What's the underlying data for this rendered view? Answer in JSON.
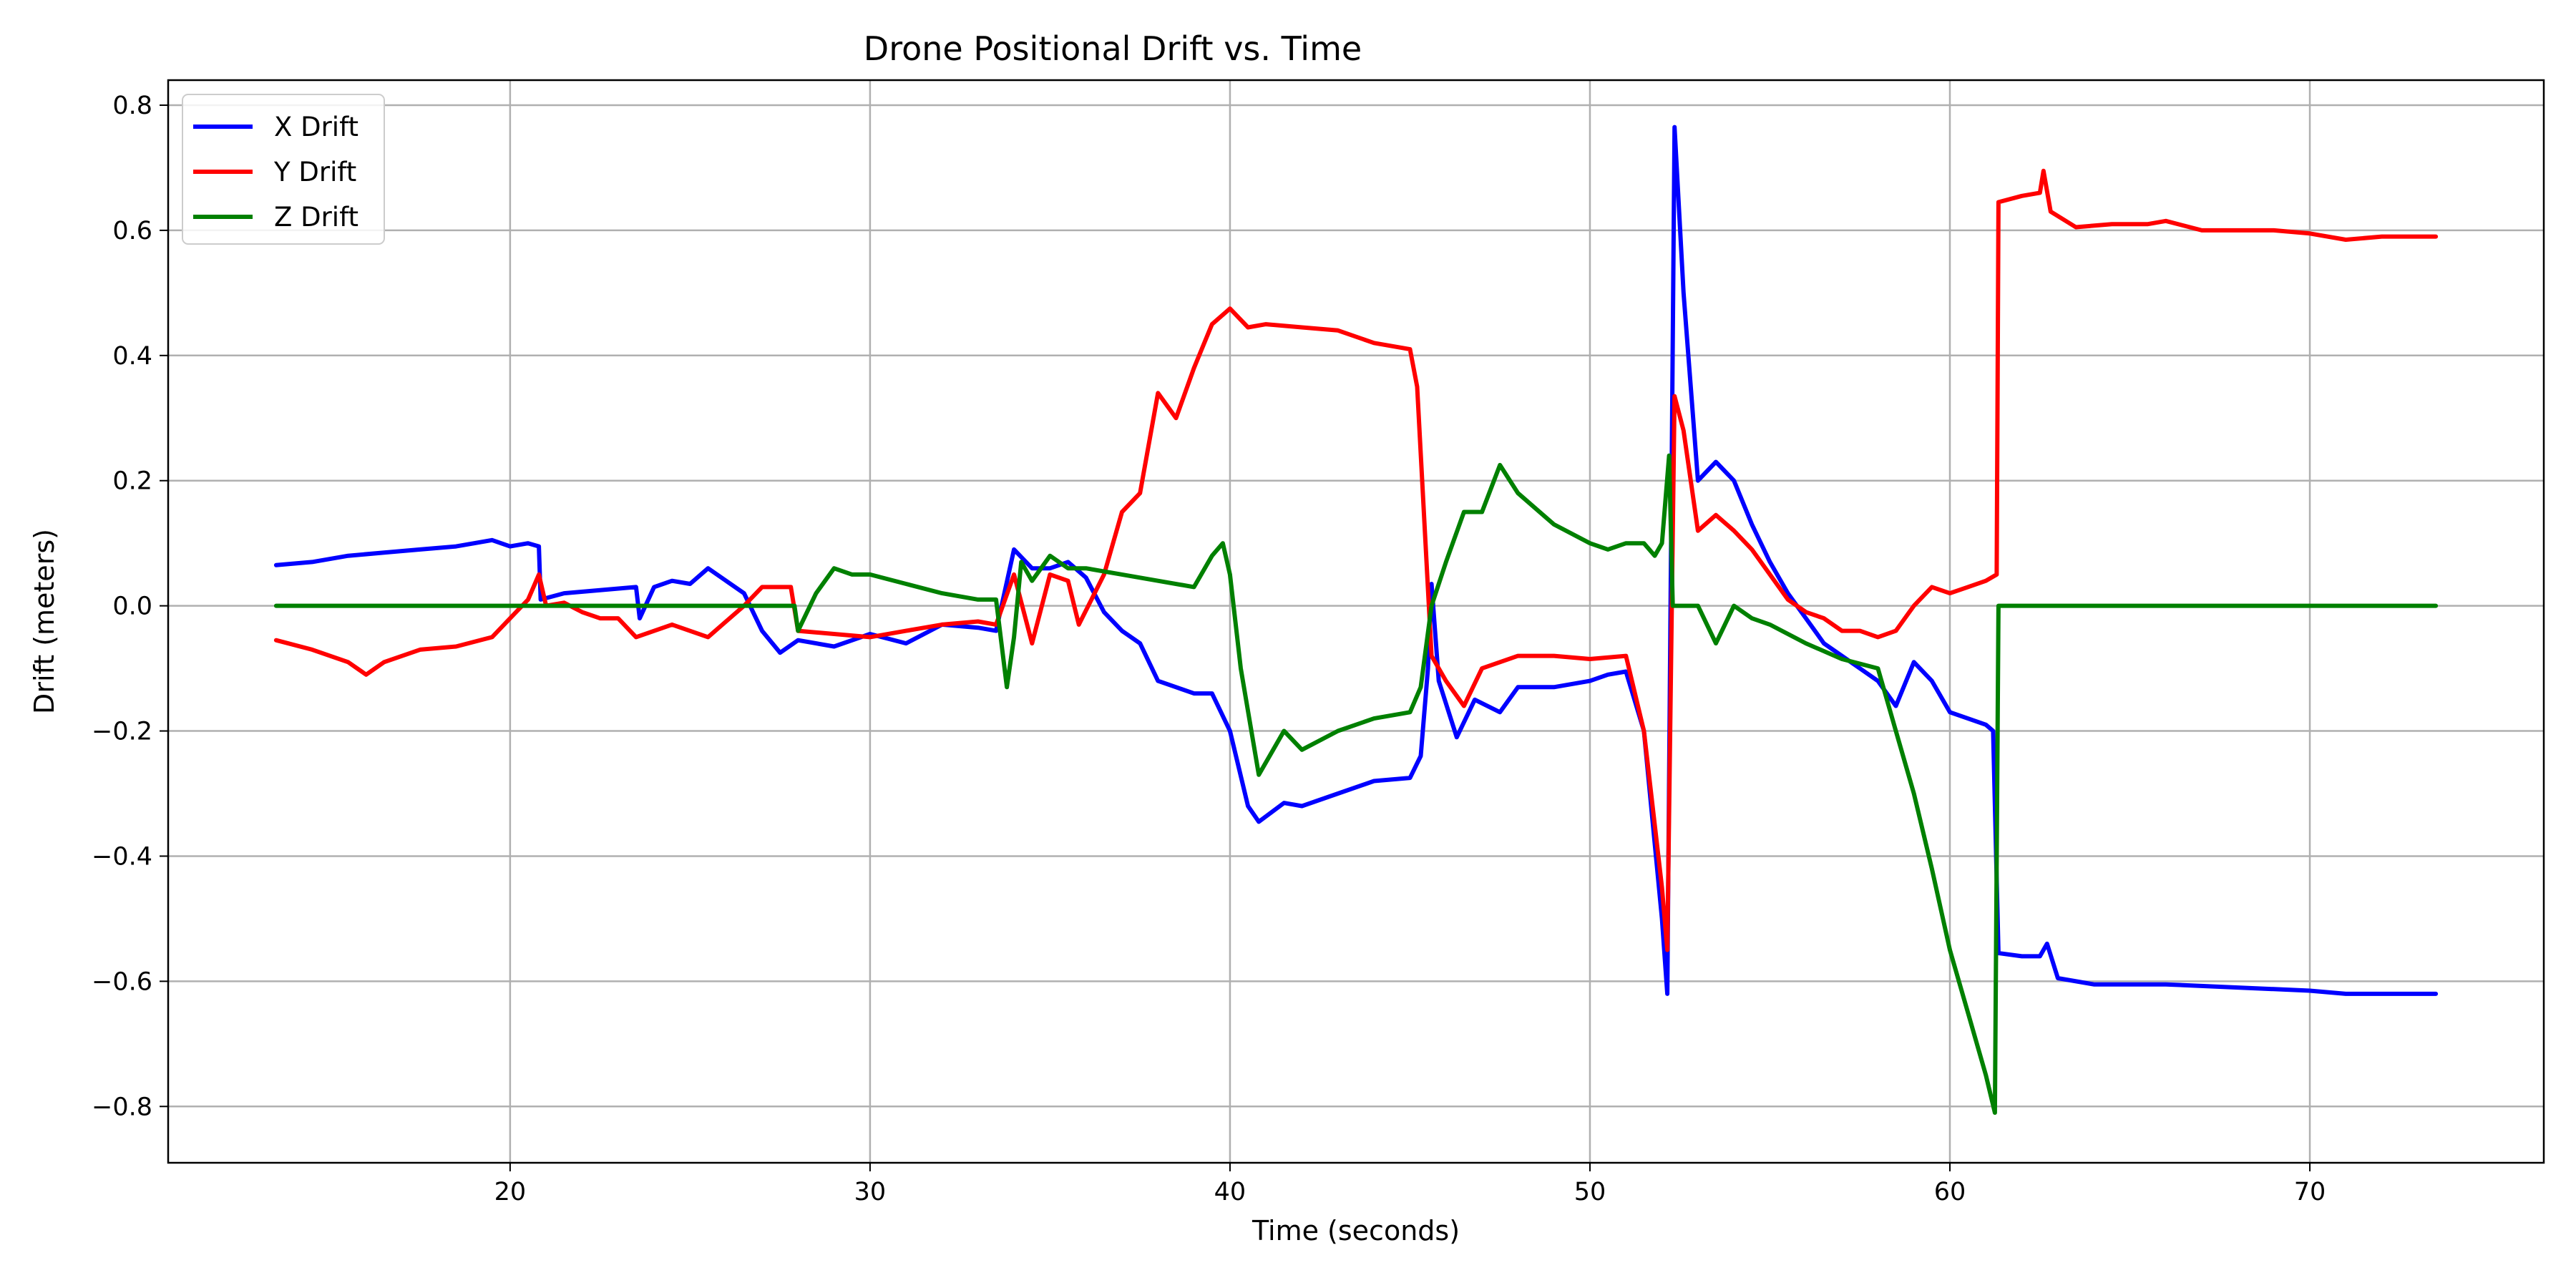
{
  "chart_data": {
    "type": "line",
    "title": "Drone Positional Drift vs. Time",
    "xlabel": "Time (seconds)",
    "ylabel": "Drift (meters)",
    "xlim": [
      10.5,
      76.5
    ],
    "ylim": [
      -0.89,
      0.84
    ],
    "xticks": [
      20,
      30,
      40,
      50,
      60,
      70
    ],
    "yticks": [
      -0.8,
      -0.6,
      -0.4,
      -0.2,
      0.0,
      0.2,
      0.4,
      0.6,
      0.8
    ],
    "ytick_labels": [
      "−0.8",
      "−0.6",
      "−0.4",
      "−0.2",
      "0.0",
      "0.2",
      "0.4",
      "0.6",
      "0.8"
    ],
    "grid": true,
    "legend_position": "upper-left",
    "series": [
      {
        "name": "X Drift",
        "color": "#0000ff",
        "points": [
          [
            13.5,
            0.065
          ],
          [
            14.5,
            0.07
          ],
          [
            15.5,
            0.08
          ],
          [
            16.5,
            0.085
          ],
          [
            17.5,
            0.09
          ],
          [
            18.5,
            0.095
          ],
          [
            19.5,
            0.105
          ],
          [
            20.0,
            0.095
          ],
          [
            20.5,
            0.1
          ],
          [
            20.8,
            0.095
          ],
          [
            20.85,
            0.01
          ],
          [
            21.5,
            0.02
          ],
          [
            22.5,
            0.025
          ],
          [
            23.5,
            0.03
          ],
          [
            23.6,
            -0.02
          ],
          [
            24.0,
            0.03
          ],
          [
            24.5,
            0.04
          ],
          [
            25.0,
            0.035
          ],
          [
            25.5,
            0.06
          ],
          [
            26.0,
            0.04
          ],
          [
            26.5,
            0.02
          ],
          [
            27.0,
            -0.04
          ],
          [
            27.5,
            -0.075
          ],
          [
            28.0,
            -0.055
          ],
          [
            29.0,
            -0.065
          ],
          [
            30.0,
            -0.045
          ],
          [
            31.0,
            -0.06
          ],
          [
            32.0,
            -0.03
          ],
          [
            33.0,
            -0.035
          ],
          [
            33.5,
            -0.04
          ],
          [
            34.0,
            0.09
          ],
          [
            34.5,
            0.06
          ],
          [
            35.0,
            0.06
          ],
          [
            35.5,
            0.07
          ],
          [
            36.0,
            0.045
          ],
          [
            36.5,
            -0.01
          ],
          [
            37.0,
            -0.04
          ],
          [
            37.5,
            -0.06
          ],
          [
            38.0,
            -0.12
          ],
          [
            38.5,
            -0.13
          ],
          [
            39.0,
            -0.14
          ],
          [
            39.5,
            -0.14
          ],
          [
            40.0,
            -0.2
          ],
          [
            40.5,
            -0.32
          ],
          [
            40.8,
            -0.345
          ],
          [
            41.5,
            -0.315
          ],
          [
            42.0,
            -0.32
          ],
          [
            43.0,
            -0.3
          ],
          [
            44.0,
            -0.28
          ],
          [
            45.0,
            -0.275
          ],
          [
            45.3,
            -0.24
          ],
          [
            45.5,
            -0.1
          ],
          [
            45.6,
            0.035
          ],
          [
            45.8,
            -0.12
          ],
          [
            46.3,
            -0.21
          ],
          [
            46.8,
            -0.15
          ],
          [
            47.5,
            -0.17
          ],
          [
            48.0,
            -0.13
          ],
          [
            49.0,
            -0.13
          ],
          [
            50.0,
            -0.12
          ],
          [
            50.5,
            -0.11
          ],
          [
            51.0,
            -0.105
          ],
          [
            51.5,
            -0.2
          ],
          [
            52.0,
            -0.5
          ],
          [
            52.15,
            -0.62
          ],
          [
            52.35,
            0.765
          ],
          [
            52.6,
            0.5
          ],
          [
            53.0,
            0.2
          ],
          [
            53.5,
            0.23
          ],
          [
            54.0,
            0.2
          ],
          [
            54.5,
            0.13
          ],
          [
            55.0,
            0.07
          ],
          [
            55.5,
            0.02
          ],
          [
            56.0,
            -0.02
          ],
          [
            56.5,
            -0.06
          ],
          [
            57.0,
            -0.08
          ],
          [
            57.5,
            -0.1
          ],
          [
            58.0,
            -0.12
          ],
          [
            58.5,
            -0.16
          ],
          [
            59.0,
            -0.09
          ],
          [
            59.5,
            -0.12
          ],
          [
            60.0,
            -0.17
          ],
          [
            60.5,
            -0.18
          ],
          [
            61.0,
            -0.19
          ],
          [
            61.2,
            -0.2
          ],
          [
            61.35,
            -0.555
          ],
          [
            62.0,
            -0.56
          ],
          [
            62.5,
            -0.56
          ],
          [
            62.7,
            -0.54
          ],
          [
            63.0,
            -0.595
          ],
          [
            64.0,
            -0.605
          ],
          [
            66.0,
            -0.605
          ],
          [
            68.0,
            -0.61
          ],
          [
            70.0,
            -0.615
          ],
          [
            71.0,
            -0.62
          ],
          [
            72.0,
            -0.62
          ],
          [
            73.5,
            -0.62
          ]
        ]
      },
      {
        "name": "Y Drift",
        "color": "#ff0000",
        "points": [
          [
            13.5,
            -0.055
          ],
          [
            14.5,
            -0.07
          ],
          [
            15.5,
            -0.09
          ],
          [
            16.0,
            -0.11
          ],
          [
            16.5,
            -0.09
          ],
          [
            17.5,
            -0.07
          ],
          [
            18.5,
            -0.065
          ],
          [
            19.5,
            -0.05
          ],
          [
            20.0,
            -0.02
          ],
          [
            20.5,
            0.01
          ],
          [
            20.8,
            0.05
          ],
          [
            21.0,
            0.0
          ],
          [
            21.5,
            0.005
          ],
          [
            22.0,
            -0.01
          ],
          [
            22.5,
            -0.02
          ],
          [
            23.0,
            -0.02
          ],
          [
            23.5,
            -0.05
          ],
          [
            24.5,
            -0.03
          ],
          [
            25.5,
            -0.05
          ],
          [
            26.5,
            0.0
          ],
          [
            27.0,
            0.03
          ],
          [
            27.5,
            0.03
          ],
          [
            27.8,
            0.03
          ],
          [
            28.0,
            -0.04
          ],
          [
            29.0,
            -0.045
          ],
          [
            30.0,
            -0.05
          ],
          [
            31.0,
            -0.04
          ],
          [
            32.0,
            -0.03
          ],
          [
            33.0,
            -0.025
          ],
          [
            33.5,
            -0.03
          ],
          [
            34.0,
            0.05
          ],
          [
            34.5,
            -0.06
          ],
          [
            35.0,
            0.05
          ],
          [
            35.5,
            0.04
          ],
          [
            35.8,
            -0.03
          ],
          [
            36.5,
            0.05
          ],
          [
            37.0,
            0.15
          ],
          [
            37.5,
            0.18
          ],
          [
            38.0,
            0.34
          ],
          [
            38.5,
            0.3
          ],
          [
            39.0,
            0.38
          ],
          [
            39.5,
            0.45
          ],
          [
            40.0,
            0.475
          ],
          [
            40.5,
            0.445
          ],
          [
            41.0,
            0.45
          ],
          [
            42.0,
            0.445
          ],
          [
            43.0,
            0.44
          ],
          [
            44.0,
            0.42
          ],
          [
            45.0,
            0.41
          ],
          [
            45.2,
            0.35
          ],
          [
            45.6,
            -0.08
          ],
          [
            46.0,
            -0.12
          ],
          [
            46.5,
            -0.16
          ],
          [
            47.0,
            -0.1
          ],
          [
            48.0,
            -0.08
          ],
          [
            49.0,
            -0.08
          ],
          [
            50.0,
            -0.085
          ],
          [
            51.0,
            -0.08
          ],
          [
            51.5,
            -0.2
          ],
          [
            52.0,
            -0.45
          ],
          [
            52.15,
            -0.55
          ],
          [
            52.35,
            0.335
          ],
          [
            52.6,
            0.28
          ],
          [
            53.0,
            0.12
          ],
          [
            53.5,
            0.145
          ],
          [
            54.0,
            0.12
          ],
          [
            54.5,
            0.09
          ],
          [
            55.0,
            0.05
          ],
          [
            55.5,
            0.01
          ],
          [
            56.0,
            -0.01
          ],
          [
            56.5,
            -0.02
          ],
          [
            57.0,
            -0.04
          ],
          [
            57.5,
            -0.04
          ],
          [
            58.0,
            -0.05
          ],
          [
            58.5,
            -0.04
          ],
          [
            59.0,
            0.0
          ],
          [
            59.5,
            0.03
          ],
          [
            60.0,
            0.02
          ],
          [
            60.5,
            0.03
          ],
          [
            61.0,
            0.04
          ],
          [
            61.3,
            0.05
          ],
          [
            61.35,
            0.645
          ],
          [
            62.0,
            0.655
          ],
          [
            62.5,
            0.66
          ],
          [
            62.6,
            0.695
          ],
          [
            62.8,
            0.63
          ],
          [
            63.5,
            0.605
          ],
          [
            64.5,
            0.61
          ],
          [
            65.5,
            0.61
          ],
          [
            66.0,
            0.615
          ],
          [
            67.0,
            0.6
          ],
          [
            68.0,
            0.6
          ],
          [
            69.0,
            0.6
          ],
          [
            70.0,
            0.595
          ],
          [
            71.0,
            0.585
          ],
          [
            72.0,
            0.59
          ],
          [
            73.5,
            0.59
          ]
        ]
      },
      {
        "name": "Z Drift",
        "color": "#008000",
        "points": [
          [
            13.5,
            0.0
          ],
          [
            20.0,
            0.0
          ],
          [
            27.0,
            0.0
          ],
          [
            27.9,
            0.0
          ],
          [
            28.0,
            -0.04
          ],
          [
            28.5,
            0.02
          ],
          [
            29.0,
            0.06
          ],
          [
            29.5,
            0.05
          ],
          [
            30.0,
            0.05
          ],
          [
            31.0,
            0.035
          ],
          [
            32.0,
            0.02
          ],
          [
            33.0,
            0.01
          ],
          [
            33.5,
            0.01
          ],
          [
            33.8,
            -0.13
          ],
          [
            34.0,
            -0.05
          ],
          [
            34.2,
            0.07
          ],
          [
            34.5,
            0.04
          ],
          [
            35.0,
            0.08
          ],
          [
            35.5,
            0.06
          ],
          [
            36.0,
            0.06
          ],
          [
            37.0,
            0.05
          ],
          [
            38.0,
            0.04
          ],
          [
            39.0,
            0.03
          ],
          [
            39.5,
            0.08
          ],
          [
            39.8,
            0.1
          ],
          [
            40.0,
            0.05
          ],
          [
            40.3,
            -0.1
          ],
          [
            40.8,
            -0.27
          ],
          [
            41.5,
            -0.2
          ],
          [
            42.0,
            -0.23
          ],
          [
            43.0,
            -0.2
          ],
          [
            44.0,
            -0.18
          ],
          [
            45.0,
            -0.17
          ],
          [
            45.3,
            -0.13
          ],
          [
            45.6,
            0.0
          ],
          [
            46.0,
            0.07
          ],
          [
            46.5,
            0.15
          ],
          [
            47.0,
            0.15
          ],
          [
            47.5,
            0.225
          ],
          [
            48.0,
            0.18
          ],
          [
            49.0,
            0.13
          ],
          [
            50.0,
            0.1
          ],
          [
            50.5,
            0.09
          ],
          [
            51.0,
            0.1
          ],
          [
            51.5,
            0.1
          ],
          [
            51.8,
            0.08
          ],
          [
            52.0,
            0.1
          ],
          [
            52.2,
            0.24
          ],
          [
            52.3,
            0.0
          ],
          [
            52.6,
            0.0
          ],
          [
            53.0,
            0.0
          ],
          [
            53.5,
            -0.06
          ],
          [
            54.0,
            0.0
          ],
          [
            54.5,
            -0.02
          ],
          [
            55.0,
            -0.03
          ],
          [
            56.0,
            -0.06
          ],
          [
            57.0,
            -0.085
          ],
          [
            58.0,
            -0.1
          ],
          [
            58.5,
            -0.2
          ],
          [
            59.0,
            -0.3
          ],
          [
            59.5,
            -0.42
          ],
          [
            60.0,
            -0.55
          ],
          [
            60.5,
            -0.65
          ],
          [
            61.0,
            -0.75
          ],
          [
            61.25,
            -0.81
          ],
          [
            61.35,
            0.0
          ],
          [
            65.0,
            0.0
          ],
          [
            70.0,
            0.0
          ],
          [
            73.5,
            0.0
          ]
        ]
      }
    ]
  }
}
